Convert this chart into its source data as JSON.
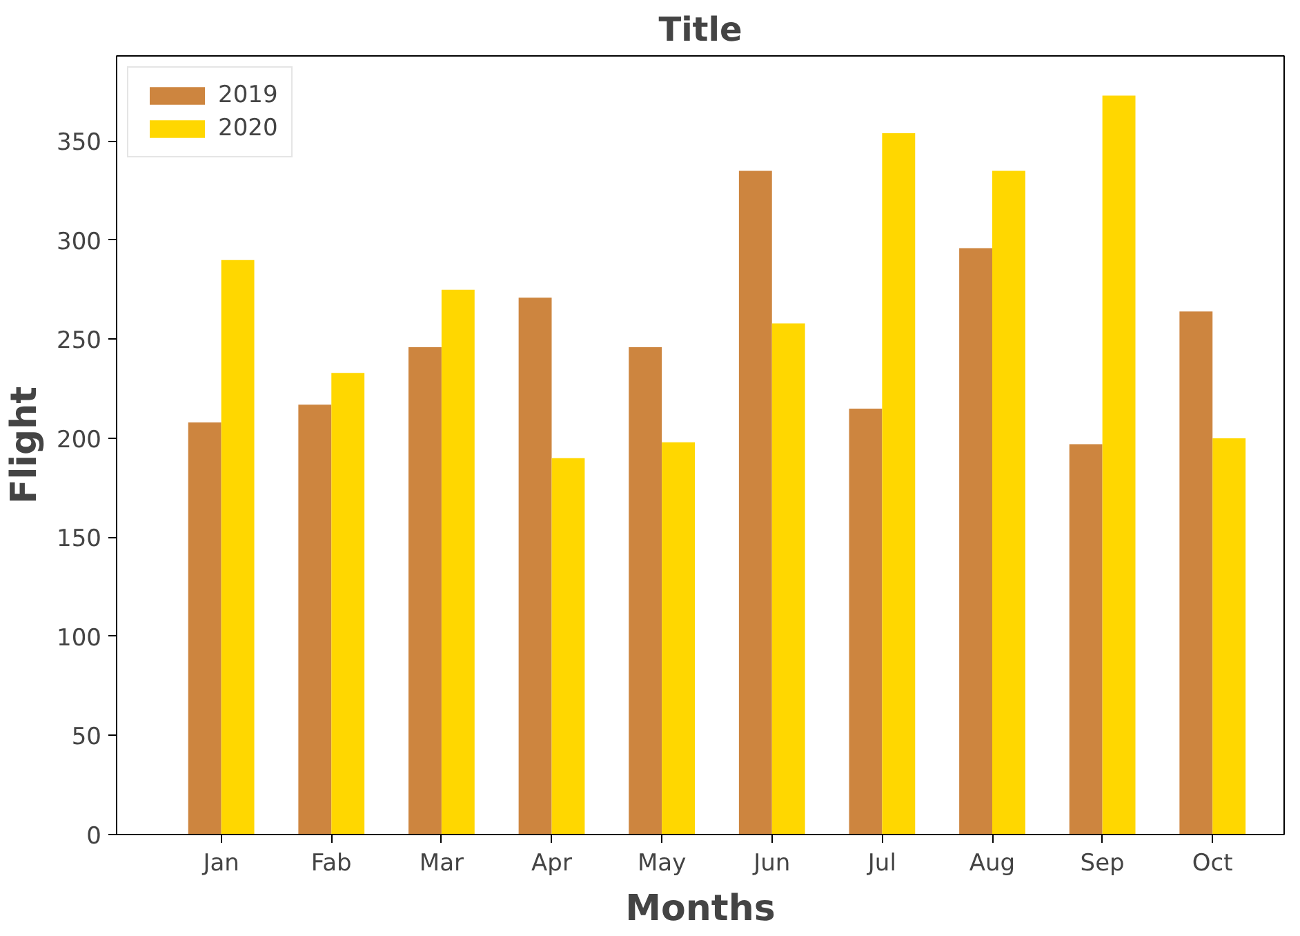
{
  "chart_data": {
    "type": "bar",
    "title": "Title",
    "xlabel": "Months",
    "ylabel": "Flight",
    "categories": [
      "Jan",
      "Fab",
      "Mar",
      "Apr",
      "May",
      "Jun",
      "Jul",
      "Aug",
      "Sep",
      "Oct"
    ],
    "series": [
      {
        "name": "2019",
        "color": "#cd853f",
        "values": [
          208,
          217,
          246,
          271,
          246,
          335,
          215,
          296,
          197,
          264
        ]
      },
      {
        "name": "2020",
        "color": "#ffd700",
        "values": [
          290,
          233,
          275,
          190,
          198,
          258,
          354,
          335,
          373,
          200
        ]
      }
    ],
    "ylim": [
      0,
      393
    ],
    "yticks": [
      0,
      50,
      100,
      150,
      200,
      250,
      300,
      350
    ],
    "grid": false,
    "legend": "top left"
  }
}
